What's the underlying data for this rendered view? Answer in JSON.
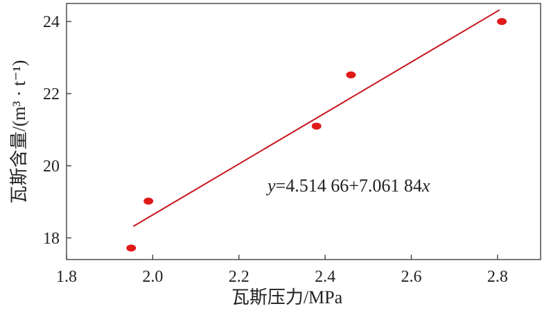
{
  "chart_data": {
    "type": "scatter",
    "xlabel": "瓦斯压力/MPa",
    "ylabel": "瓦斯含量/(m³ · t⁻¹)",
    "xlim": [
      1.8,
      2.9
    ],
    "ylim": [
      17.4,
      24.5
    ],
    "x_ticks": [
      1.8,
      2.0,
      2.2,
      2.4,
      2.6,
      2.8
    ],
    "x_tick_labels": [
      "1.8",
      "2.0",
      "2.2",
      "2.4",
      "2.6",
      "2.8"
    ],
    "y_ticks": [
      18,
      20,
      22,
      24
    ],
    "y_tick_labels": [
      "18",
      "20",
      "22",
      "24"
    ],
    "grid": false,
    "series": [
      {
        "points": [
          {
            "x": 1.95,
            "y": 17.72
          },
          {
            "x": 1.99,
            "y": 19.02
          },
          {
            "x": 2.38,
            "y": 21.1
          },
          {
            "x": 2.46,
            "y": 22.52
          },
          {
            "x": 2.81,
            "y": 24.0
          }
        ],
        "color": "#e01a1a"
      }
    ],
    "fit_line": {
      "intercept": 4.51466,
      "slope": 7.06184,
      "x_range": [
        1.955,
        2.805
      ],
      "color": "#c8161d"
    },
    "annotation": {
      "y_var": "y",
      "equation_body": "=4.514 66+7.061 84",
      "x_var": "x"
    }
  }
}
